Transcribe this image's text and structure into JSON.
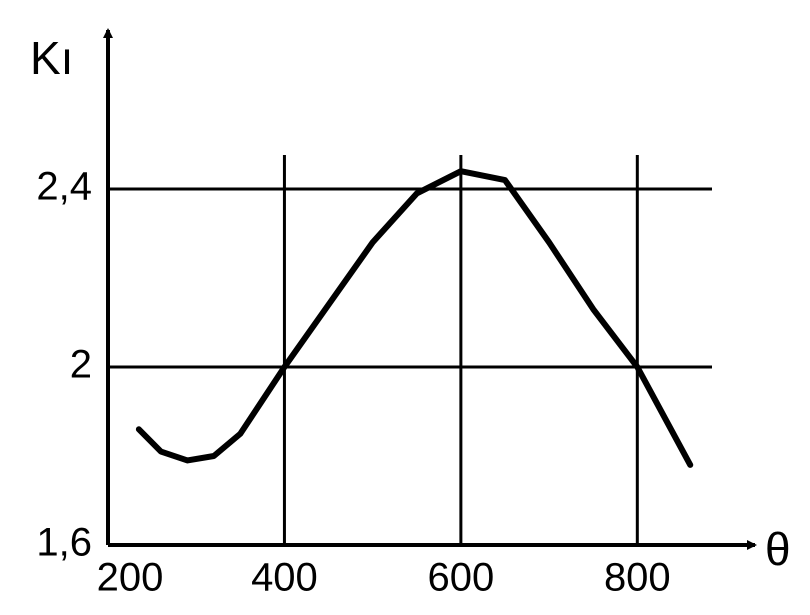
{
  "chart_data": {
    "type": "line",
    "y_label": "Kı",
    "x_label": "θ",
    "x": [
      235,
      260,
      290,
      320,
      350,
      400,
      450,
      500,
      550,
      600,
      650,
      700,
      750,
      800,
      860
    ],
    "series": [
      {
        "name": "Kı",
        "color": "#000000",
        "values": [
          1.86,
          1.81,
          1.79,
          1.8,
          1.85,
          2.0,
          2.14,
          2.28,
          2.39,
          2.44,
          2.42,
          2.28,
          2.13,
          2.0,
          1.78
        ]
      }
    ],
    "xlim": [
      200,
      930
    ],
    "ylim": [
      1.6,
      2.8
    ],
    "xticks": [
      200,
      400,
      600,
      800
    ],
    "yticks": [
      {
        "value": 1.6,
        "label": "1,6"
      },
      2,
      {
        "value": 2.4,
        "label": "2,4"
      }
    ],
    "grid": true
  }
}
